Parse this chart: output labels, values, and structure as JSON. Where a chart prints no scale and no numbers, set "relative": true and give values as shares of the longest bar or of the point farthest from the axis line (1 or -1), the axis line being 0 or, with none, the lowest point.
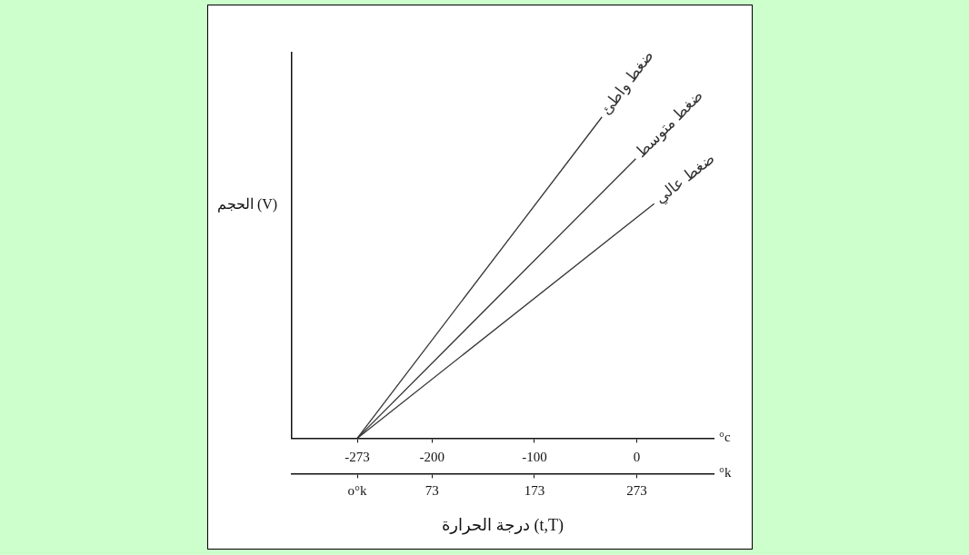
{
  "chart_data": {
    "type": "line",
    "relative": true,
    "xlabel": "درجة الحرارة (t,T)",
    "ylabel": "الحجم (V)",
    "xlim": [
      -337,
      75
    ],
    "xticks": [
      -273,
      -200,
      -100,
      0
    ],
    "x2lim": [
      -64,
      348
    ],
    "x2ticks": [
      {
        "value": 0,
        "label": "o°k"
      },
      73,
      173,
      273
    ],
    "annotations": [
      "°c",
      "°k"
    ],
    "marker": "none",
    "line_style": "solid",
    "grid": false,
    "legend": false,
    "series": [
      {
        "name": "ضغط واطئ",
        "color": "#333333",
        "x": [
          -273,
          -34
        ],
        "values": [
          0,
          1
        ]
      },
      {
        "name": "ضغط متوسط",
        "color": "#333333",
        "x": [
          -273,
          -1
        ],
        "values": [
          0,
          0.87
        ]
      },
      {
        "name": "ضغط عالي",
        "color": "#333333",
        "x": [
          -273,
          17
        ],
        "values": [
          0,
          0.73
        ]
      }
    ]
  }
}
